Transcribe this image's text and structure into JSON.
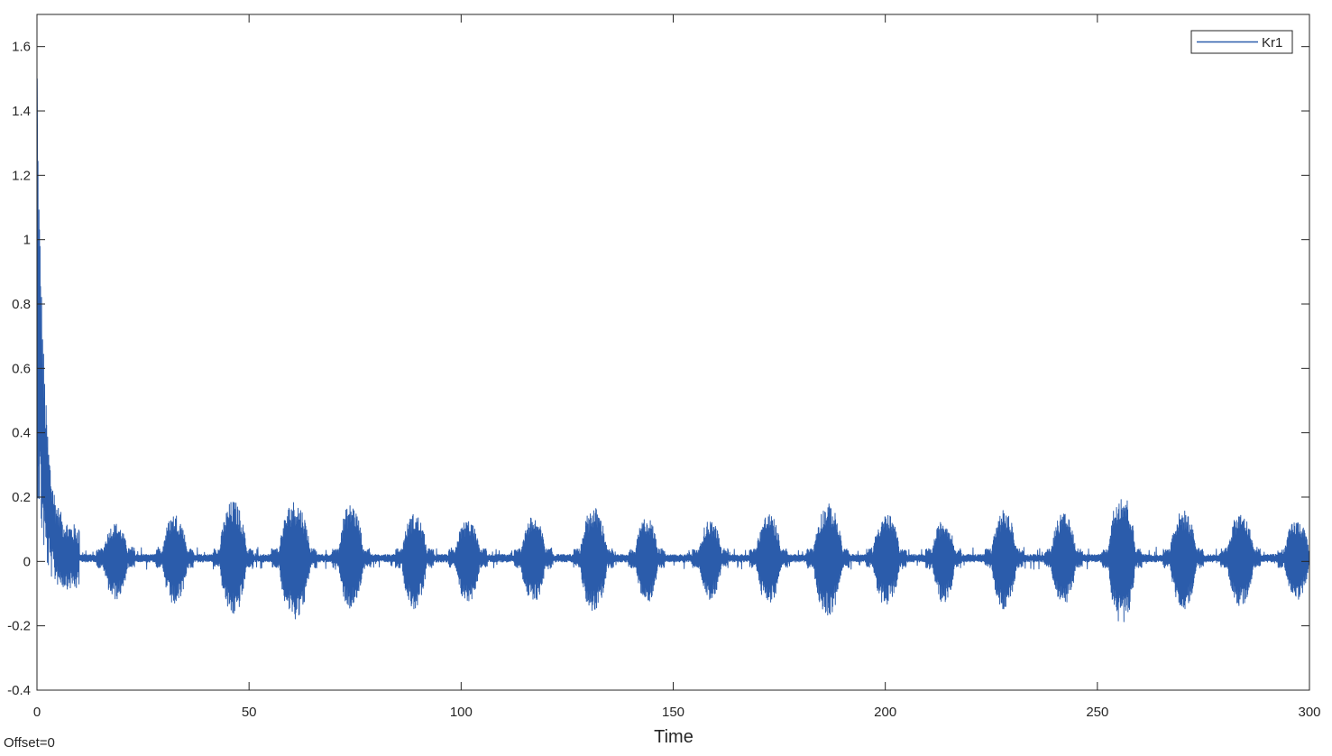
{
  "chart_data": {
    "type": "line",
    "title": "",
    "xlabel": "Time",
    "ylabel": "",
    "footnote": "Offset=0",
    "xlim": [
      0,
      300
    ],
    "ylim": [
      -0.4,
      1.7
    ],
    "xticks": [
      0,
      50,
      100,
      150,
      200,
      250,
      300
    ],
    "xtick_labels": [
      "0",
      "50",
      "100",
      "150",
      "200",
      "250",
      "300"
    ],
    "yticks": [
      -0.4,
      -0.2,
      0,
      0.2,
      0.4,
      0.6,
      0.8,
      1,
      1.2,
      1.4,
      1.6
    ],
    "ytick_labels": [
      "-0.4",
      "-0.2",
      "0",
      "0.2",
      "0.4",
      "0.6",
      "0.8",
      "1",
      "1.2",
      "1.4",
      "1.6"
    ],
    "grid": false,
    "legend": {
      "position": "top-right",
      "entries": [
        "Kr1"
      ]
    },
    "series": [
      {
        "name": "Kr1",
        "color": "#2b5cab",
        "initial_peak": 1.5,
        "settled_level": 0.01,
        "bursts": [
          {
            "start": 15.5,
            "end": 21.5,
            "peak": 0.12,
            "trough": -0.12
          },
          {
            "start": 29.5,
            "end": 35.5,
            "peak": 0.15,
            "trough": -0.14
          },
          {
            "start": 43.0,
            "end": 49.5,
            "peak": 0.19,
            "trough": -0.17
          },
          {
            "start": 57.0,
            "end": 64.5,
            "peak": 0.19,
            "trough": -0.18
          },
          {
            "start": 71.0,
            "end": 77.0,
            "peak": 0.18,
            "trough": -0.15
          },
          {
            "start": 86.0,
            "end": 92.0,
            "peak": 0.15,
            "trough": -0.15
          },
          {
            "start": 98.5,
            "end": 104.5,
            "peak": 0.13,
            "trough": -0.13
          },
          {
            "start": 114.0,
            "end": 120.0,
            "peak": 0.14,
            "trough": -0.13
          },
          {
            "start": 128.0,
            "end": 134.5,
            "peak": 0.17,
            "trough": -0.16
          },
          {
            "start": 141.0,
            "end": 146.5,
            "peak": 0.14,
            "trough": -0.13
          },
          {
            "start": 156.0,
            "end": 161.5,
            "peak": 0.13,
            "trough": -0.12
          },
          {
            "start": 169.5,
            "end": 175.5,
            "peak": 0.15,
            "trough": -0.14
          },
          {
            "start": 183.0,
            "end": 190.0,
            "peak": 0.18,
            "trough": -0.17
          },
          {
            "start": 197.0,
            "end": 203.5,
            "peak": 0.15,
            "trough": -0.14
          },
          {
            "start": 211.0,
            "end": 216.5,
            "peak": 0.13,
            "trough": -0.13
          },
          {
            "start": 225.0,
            "end": 231.0,
            "peak": 0.16,
            "trough": -0.15
          },
          {
            "start": 239.0,
            "end": 245.0,
            "peak": 0.15,
            "trough": -0.14
          },
          {
            "start": 252.5,
            "end": 259.0,
            "peak": 0.22,
            "trough": -0.2
          },
          {
            "start": 267.0,
            "end": 273.5,
            "peak": 0.16,
            "trough": -0.15
          },
          {
            "start": 280.5,
            "end": 287.0,
            "peak": 0.15,
            "trough": -0.14
          },
          {
            "start": 294.0,
            "end": 300.0,
            "peak": 0.13,
            "trough": -0.12
          }
        ]
      }
    ]
  }
}
